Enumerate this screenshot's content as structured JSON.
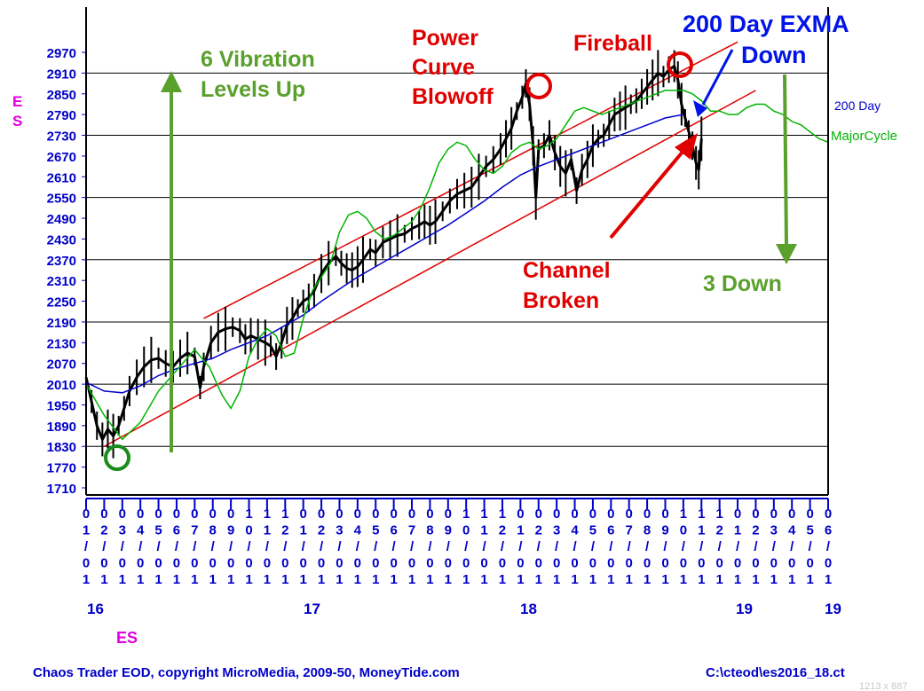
{
  "chart_data": {
    "type": "line",
    "title": "",
    "y_axis": {
      "letters": [
        "E",
        "S"
      ],
      "ticks": [
        2970,
        2910,
        2850,
        2790,
        2730,
        2670,
        2610,
        2550,
        2490,
        2430,
        2370,
        2310,
        2250,
        2190,
        2130,
        2070,
        2010,
        1950,
        1890,
        1830,
        1770,
        1710
      ],
      "range": [
        1710,
        3010
      ]
    },
    "x_axis": {
      "month_ticks": [
        "01/01",
        "02/01",
        "03/01",
        "04/01",
        "05/01",
        "06/01",
        "07/01",
        "08/01",
        "09/01",
        "10/01",
        "11/01",
        "12/01",
        "01/01",
        "02/01",
        "03/01",
        "04/01",
        "05/01",
        "06/01",
        "07/01",
        "08/01",
        "09/01",
        "10/01",
        "11/01",
        "12/01",
        "01/01",
        "02/01",
        "03/01",
        "04/01",
        "05/01",
        "06/01",
        "07/01",
        "08/01",
        "09/01",
        "10/01",
        "11/01",
        "12/01",
        "01/01",
        "02/01",
        "03/01",
        "04/01",
        "05/01",
        "06/01"
      ],
      "year_labels": [
        "16",
        "17",
        "18",
        "19",
        "19"
      ],
      "symbol": "ES",
      "range_months": [
        0,
        41
      ]
    },
    "grid": true,
    "series": [
      {
        "name": "ES",
        "color": "#000000",
        "type": "bar-ohlc",
        "points": [
          [
            0,
            2030
          ],
          [
            0.3,
            1960
          ],
          [
            0.6,
            1890
          ],
          [
            0.9,
            1850
          ],
          [
            1.2,
            1880
          ],
          [
            1.5,
            1860
          ],
          [
            1.8,
            1890
          ],
          [
            2.1,
            1940
          ],
          [
            2.4,
            1990
          ],
          [
            2.8,
            2030
          ],
          [
            3.2,
            2060
          ],
          [
            3.6,
            2080
          ],
          [
            4.0,
            2085
          ],
          [
            4.4,
            2070
          ],
          [
            4.8,
            2060
          ],
          [
            5.2,
            2085
          ],
          [
            5.6,
            2100
          ],
          [
            6.0,
            2090
          ],
          [
            6.3,
            2000
          ],
          [
            6.5,
            2060
          ],
          [
            6.9,
            2130
          ],
          [
            7.3,
            2160
          ],
          [
            7.7,
            2170
          ],
          [
            8.1,
            2175
          ],
          [
            8.5,
            2165
          ],
          [
            8.8,
            2140
          ],
          [
            9.1,
            2150
          ],
          [
            9.5,
            2140
          ],
          [
            9.9,
            2130
          ],
          [
            10.2,
            2120
          ],
          [
            10.5,
            2090
          ],
          [
            10.8,
            2130
          ],
          [
            11.1,
            2180
          ],
          [
            11.4,
            2200
          ],
          [
            11.7,
            2230
          ],
          [
            12.0,
            2250
          ],
          [
            12.3,
            2260
          ],
          [
            12.6,
            2280
          ],
          [
            13.0,
            2330
          ],
          [
            13.4,
            2360
          ],
          [
            13.8,
            2380
          ],
          [
            14.1,
            2360
          ],
          [
            14.4,
            2345
          ],
          [
            14.7,
            2340
          ],
          [
            15.0,
            2350
          ],
          [
            15.3,
            2370
          ],
          [
            15.7,
            2400
          ],
          [
            16.0,
            2390
          ],
          [
            16.4,
            2420
          ],
          [
            16.8,
            2430
          ],
          [
            17.2,
            2440
          ],
          [
            17.6,
            2445
          ],
          [
            18.0,
            2460
          ],
          [
            18.4,
            2470
          ],
          [
            18.7,
            2480
          ],
          [
            19.0,
            2470
          ],
          [
            19.3,
            2480
          ],
          [
            19.7,
            2510
          ],
          [
            20.1,
            2540
          ],
          [
            20.5,
            2560
          ],
          [
            20.9,
            2570
          ],
          [
            21.3,
            2580
          ],
          [
            21.7,
            2610
          ],
          [
            22.1,
            2640
          ],
          [
            22.5,
            2660
          ],
          [
            22.9,
            2690
          ],
          [
            23.2,
            2720
          ],
          [
            23.5,
            2750
          ],
          [
            23.8,
            2800
          ],
          [
            24.1,
            2840
          ],
          [
            24.3,
            2880
          ],
          [
            24.5,
            2820
          ],
          [
            24.7,
            2700
          ],
          [
            24.85,
            2550
          ],
          [
            25.0,
            2690
          ],
          [
            25.3,
            2700
          ],
          [
            25.6,
            2730
          ],
          [
            25.9,
            2680
          ],
          [
            26.2,
            2640
          ],
          [
            26.5,
            2620
          ],
          [
            26.8,
            2660
          ],
          [
            27.1,
            2570
          ],
          [
            27.4,
            2630
          ],
          [
            27.7,
            2660
          ],
          [
            28.0,
            2700
          ],
          [
            28.3,
            2720
          ],
          [
            28.6,
            2730
          ],
          [
            28.9,
            2760
          ],
          [
            29.2,
            2790
          ],
          [
            29.5,
            2800
          ],
          [
            29.8,
            2810
          ],
          [
            30.1,
            2820
          ],
          [
            30.4,
            2830
          ],
          [
            30.7,
            2850
          ],
          [
            31.0,
            2870
          ],
          [
            31.3,
            2890
          ],
          [
            31.6,
            2910
          ],
          [
            31.9,
            2900
          ],
          [
            32.2,
            2920
          ],
          [
            32.5,
            2930
          ],
          [
            32.7,
            2890
          ],
          [
            32.9,
            2820
          ],
          [
            33.1,
            2780
          ],
          [
            33.3,
            2740
          ],
          [
            33.5,
            2700
          ],
          [
            33.7,
            2650
          ],
          [
            33.85,
            2630
          ],
          [
            34.0,
            2720
          ]
        ]
      },
      {
        "name": "200 Day",
        "color": "#0000c8",
        "points": [
          [
            0,
            2015
          ],
          [
            1,
            1990
          ],
          [
            2,
            1985
          ],
          [
            3,
            2005
          ],
          [
            4,
            2035
          ],
          [
            5,
            2055
          ],
          [
            6,
            2070
          ],
          [
            7,
            2085
          ],
          [
            8,
            2110
          ],
          [
            9,
            2130
          ],
          [
            10,
            2150
          ],
          [
            11,
            2180
          ],
          [
            12,
            2210
          ],
          [
            13,
            2250
          ],
          [
            14,
            2285
          ],
          [
            15,
            2320
          ],
          [
            16,
            2350
          ],
          [
            17,
            2380
          ],
          [
            18,
            2410
          ],
          [
            19,
            2440
          ],
          [
            20,
            2470
          ],
          [
            21,
            2505
          ],
          [
            22,
            2540
          ],
          [
            23,
            2580
          ],
          [
            24,
            2615
          ],
          [
            25,
            2640
          ],
          [
            26,
            2660
          ],
          [
            27,
            2680
          ],
          [
            28,
            2700
          ],
          [
            29,
            2720
          ],
          [
            30,
            2740
          ],
          [
            31,
            2760
          ],
          [
            32,
            2780
          ],
          [
            33,
            2790
          ]
        ]
      },
      {
        "name": "MajorCycle",
        "color": "#00b400",
        "points": [
          [
            0,
            2010
          ],
          [
            1,
            1920
          ],
          [
            2,
            1850
          ],
          [
            3,
            1900
          ],
          [
            4,
            1990
          ],
          [
            5,
            2050
          ],
          [
            6,
            2110
          ],
          [
            6.8,
            2060
          ],
          [
            7.5,
            1980
          ],
          [
            8,
            1940
          ],
          [
            8.5,
            1990
          ],
          [
            9,
            2090
          ],
          [
            9.5,
            2140
          ],
          [
            10,
            2170
          ],
          [
            10.5,
            2150
          ],
          [
            11,
            2090
          ],
          [
            11.5,
            2100
          ],
          [
            12,
            2200
          ],
          [
            12.5,
            2280
          ],
          [
            13,
            2320
          ],
          [
            13.5,
            2360
          ],
          [
            14,
            2450
          ],
          [
            14.5,
            2500
          ],
          [
            15,
            2510
          ],
          [
            15.5,
            2490
          ],
          [
            16,
            2450
          ],
          [
            16.5,
            2430
          ],
          [
            17,
            2440
          ],
          [
            17.5,
            2460
          ],
          [
            18,
            2480
          ],
          [
            18.5,
            2520
          ],
          [
            19,
            2580
          ],
          [
            19.5,
            2650
          ],
          [
            20,
            2690
          ],
          [
            20.5,
            2710
          ],
          [
            21,
            2700
          ],
          [
            21.5,
            2660
          ],
          [
            22,
            2630
          ],
          [
            22.5,
            2620
          ],
          [
            23,
            2640
          ],
          [
            23.5,
            2680
          ],
          [
            24,
            2700
          ],
          [
            24.5,
            2710
          ],
          [
            25,
            2690
          ],
          [
            25.5,
            2700
          ],
          [
            26,
            2720
          ],
          [
            26.5,
            2760
          ],
          [
            27,
            2800
          ],
          [
            27.5,
            2810
          ],
          [
            28,
            2800
          ],
          [
            28.5,
            2790
          ],
          [
            29,
            2800
          ],
          [
            29.5,
            2810
          ],
          [
            30,
            2820
          ],
          [
            30.5,
            2830
          ],
          [
            31,
            2840
          ],
          [
            31.5,
            2850
          ],
          [
            32,
            2860
          ],
          [
            32.5,
            2860
          ],
          [
            33,
            2860
          ],
          [
            33.5,
            2850
          ],
          [
            34,
            2830
          ],
          [
            34.5,
            2800
          ],
          [
            35,
            2800
          ],
          [
            35.5,
            2790
          ],
          [
            36,
            2790
          ],
          [
            36.5,
            2810
          ],
          [
            37,
            2820
          ],
          [
            37.5,
            2820
          ],
          [
            38,
            2800
          ],
          [
            38.5,
            2790
          ],
          [
            39,
            2770
          ],
          [
            39.5,
            2760
          ],
          [
            40,
            2740
          ],
          [
            40.5,
            2720
          ],
          [
            41,
            2710
          ]
        ]
      }
    ],
    "channel": {
      "color": "#e00000",
      "upper": [
        [
          6.5,
          2200
        ],
        [
          36,
          3000
        ]
      ],
      "lower": [
        [
          1,
          1830
        ],
        [
          37,
          2860
        ]
      ]
    },
    "labels": {
      "ma200": "200 Day",
      "major_cycle": "MajorCycle"
    },
    "annotations": {
      "vibration": [
        "6 Vibration",
        "Levels Up"
      ],
      "power": [
        "Power",
        "Curve",
        "Blowoff"
      ],
      "fireball": "Fireball",
      "exma": [
        "200 Day EXMA",
        "Down"
      ],
      "channel_broken": [
        "Channel",
        "Broken"
      ],
      "three_down": "3 Down"
    },
    "colors": {
      "axis_text": "#0000c8",
      "magenta": "#e000e0",
      "annotation_green": "#5aa02c",
      "annotation_red": "#e00000",
      "annotation_blue": "#0014e6",
      "circle_green": "#1a8c1a",
      "arrow_green": "#5aa02c",
      "gridline": "#000000"
    }
  },
  "footer": {
    "left": "Chaos Trader EOD, copyright MicroMedia, 2009-50, MoneyTide.com",
    "right": "C:\\cteod\\es2016_18.ct",
    "dims": "1213 x 887"
  }
}
